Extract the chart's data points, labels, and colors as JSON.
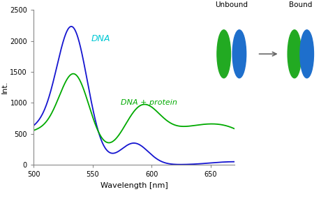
{
  "xlim": [
    500,
    670
  ],
  "ylim": [
    0,
    2500
  ],
  "xlabel": "Wavelength [nm]",
  "ylabel": "Int.",
  "dna_label": "DNA",
  "dna_protein_label": "DNA + protein",
  "dna_color": "#1515d0",
  "dna_protein_color": "#00aa00",
  "dna_label_color": "#00c8d4",
  "unbound_label": "Unbound",
  "bound_label": "Bound",
  "ellipse_green": "#22aa22",
  "ellipse_blue": "#1e6fcc",
  "background_color": "#ffffff",
  "yticks": [
    0,
    500,
    1000,
    1500,
    2000,
    2500
  ],
  "xticks": [
    500,
    550,
    600,
    650
  ]
}
